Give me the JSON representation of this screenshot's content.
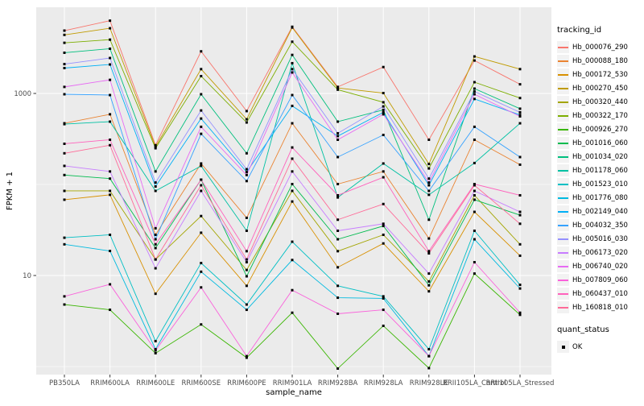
{
  "chart_data": {
    "type": "line",
    "title": "",
    "xlabel": "sample_name",
    "ylabel": "FPKM + 1",
    "y_scale": "log10",
    "ylim": [
      0.8,
      8000
    ],
    "y_tick_labels": [
      "10",
      "1000"
    ],
    "y_tick_values": [
      10,
      1000
    ],
    "y_minor_grid_values": [
      1,
      100
    ],
    "grid": "on",
    "panel_bg": "#EBEBEB",
    "grid_color": "#FFFFFF",
    "tick_text_color": "#4D4D4D",
    "point_marker": {
      "shape": "square",
      "color": "#000000",
      "size": 3
    },
    "legend_position": "right",
    "legend": {
      "title": "tracking_id"
    },
    "quant_legend": {
      "title": "quant_status",
      "items": [
        {
          "label": "OK"
        }
      ]
    },
    "categories": [
      "PB350LA",
      "RRIM600LA",
      "RRIM600LE",
      "RRIM600SE",
      "RRIM600PE",
      "RRIM901LA",
      "RRIM928BA",
      "RRIM928LA",
      "RRIM928LE",
      "RRII105LA_Control",
      "RRII105LA_Stressed"
    ],
    "series": [
      {
        "name": "Hb_000076_290",
        "color": "#F8766D",
        "values": [
          4900,
          6300,
          270,
          2900,
          640,
          5400,
          1180,
          1950,
          310,
          2300,
          1260
        ]
      },
      {
        "name": "Hb_000088_180",
        "color": "#EA8331",
        "values": [
          470,
          590,
          28,
          170,
          43,
          470,
          101,
          139,
          25.5,
          310,
          165
        ]
      },
      {
        "name": "Hb_000172_530",
        "color": "#D89000",
        "values": [
          68,
          77,
          6.3,
          29.5,
          7.7,
          65,
          12.3,
          22.5,
          6.7,
          50,
          16.5
        ]
      },
      {
        "name": "Hb_000270_450",
        "color": "#C09B00",
        "values": [
          4400,
          5200,
          260,
          1850,
          520,
          5300,
          1150,
          1010,
          168,
          2550,
          1850
        ]
      },
      {
        "name": "Hb_000320_440",
        "color": "#A3A500",
        "values": [
          85,
          85,
          15,
          45,
          11.5,
          85,
          18.5,
          28,
          8.6,
          76,
          22
        ]
      },
      {
        "name": "Hb_000322_170",
        "color": "#7CAE00",
        "values": [
          3600,
          3900,
          250,
          1550,
          480,
          3700,
          1100,
          800,
          150,
          1330,
          890
        ]
      },
      {
        "name": "Hb_000926_270",
        "color": "#39B600",
        "values": [
          4.8,
          4.2,
          1.4,
          2.9,
          1.25,
          3.9,
          0.95,
          2.8,
          0.96,
          10.5,
          3.7
        ]
      },
      {
        "name": "Hb_001016_060",
        "color": "#00BB4E",
        "values": [
          127,
          116,
          20,
          113,
          9.8,
          101,
          25,
          35,
          7.8,
          68,
          46
        ]
      },
      {
        "name": "Hb_001034_020",
        "color": "#00BF7D",
        "values": [
          2800,
          3100,
          139,
          980,
          220,
          2650,
          490,
          660,
          41,
          1130,
          680
        ]
      },
      {
        "name": "Hb_001178_060",
        "color": "#00C1A3",
        "values": [
          460,
          490,
          85,
          160,
          31,
          2150,
          72,
          170,
          77,
          172,
          470
        ]
      },
      {
        "name": "Hb_001523_010",
        "color": "#00BFC4",
        "values": [
          26,
          28,
          1.9,
          13.7,
          4.8,
          23.5,
          7.7,
          5.9,
          1.55,
          31,
          7.9
        ]
      },
      {
        "name": "Hb_001776_080",
        "color": "#00BAE0",
        "values": [
          22,
          18.6,
          1.55,
          11,
          4.2,
          14.8,
          5.7,
          5.6,
          1.3,
          25,
          7.2
        ]
      },
      {
        "name": "Hb_002149_040",
        "color": "#00B0F6",
        "values": [
          1900,
          2080,
          95,
          530,
          137,
          730,
          340,
          620,
          98,
          870,
          580
        ]
      },
      {
        "name": "Hb_004032_350",
        "color": "#35A2FF",
        "values": [
          980,
          960,
          25,
          360,
          109,
          960,
          200,
          350,
          85,
          430,
          200
        ]
      },
      {
        "name": "Hb_005016_030",
        "color": "#9590FF",
        "values": [
          2100,
          2450,
          105,
          650,
          147,
          1850,
          365,
          720,
          116,
          1050,
          620
        ]
      },
      {
        "name": "Hb_006173_020",
        "color": "#C77CFF",
        "values": [
          160,
          139,
          12,
          85,
          14,
          139,
          31,
          37,
          10.5,
          85,
          50
        ]
      },
      {
        "name": "Hb_006740_020",
        "color": "#E76BF3",
        "values": [
          1180,
          1410,
          33,
          430,
          127,
          1700,
          310,
          590,
          105,
          980,
          560
        ]
      },
      {
        "name": "Hb_007809_060",
        "color": "#FA62DB",
        "values": [
          5.9,
          8.0,
          1.5,
          7.4,
          1.3,
          6.9,
          3.8,
          4.2,
          1.3,
          14,
          3.9
        ]
      },
      {
        "name": "Hb_060437_010",
        "color": "#FF62BC",
        "values": [
          280,
          310,
          22,
          113,
          18.5,
          255,
          76,
          120,
          18.5,
          101,
          76
        ]
      },
      {
        "name": "Hb_160818_010",
        "color": "#FF6A98",
        "values": [
          220,
          270,
          15,
          98,
          15,
          192,
          41,
          61,
          17.5,
          98,
          37
        ]
      }
    ]
  }
}
